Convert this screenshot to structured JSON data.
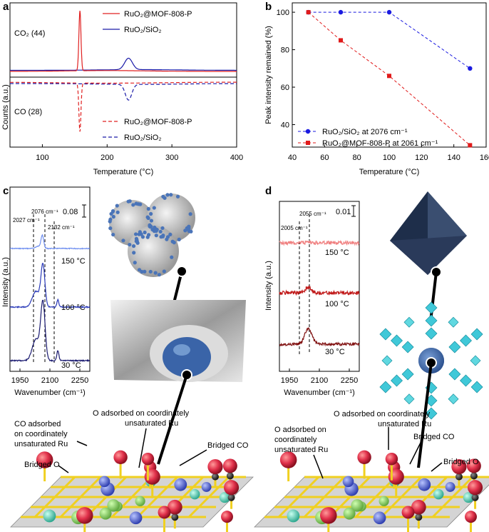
{
  "panels": {
    "a": "a",
    "b": "b",
    "c": "c",
    "d": "d"
  },
  "panel_a": {
    "legend_top": [
      "RuO₂@MOF-808-P",
      "RuO₂/SiO₂"
    ],
    "legend_bottom": [
      "RuO₂@MOF-808-P",
      "RuO₂/SiO₂"
    ],
    "label_co2": "CO₂ (44)",
    "label_co": "CO (28)",
    "ylabel": "Counts (a.u.)",
    "xlabel": "Temperature (°C)",
    "xticks": [
      "100",
      "200",
      "300",
      "400"
    ],
    "colors": {
      "mof": "#e02020",
      "sio2": "#1a1aa8"
    }
  },
  "chart_data": [
    {
      "type": "line",
      "title": "",
      "xlabel": "Temperature (°C)",
      "ylabel": "Counts (a.u.)",
      "xlim": [
        50,
        400
      ],
      "series": [
        {
          "name": "RuO₂@MOF-808-P",
          "signal": "CO₂ (44)",
          "peak_x": 158
        },
        {
          "name": "RuO₂/SiO₂",
          "signal": "CO₂ (44)",
          "peak_x": 233
        },
        {
          "name": "RuO₂@MOF-808-P",
          "signal": "CO (28)",
          "peak_x": 158
        },
        {
          "name": "RuO₂/SiO₂",
          "signal": "CO (28)",
          "peak_x": 233
        }
      ]
    },
    {
      "type": "line",
      "title": "",
      "xlabel": "Temperature (°C)",
      "ylabel": "Peak intensity remained (%)",
      "xlim": [
        40,
        160
      ],
      "ylim": [
        28,
        105
      ],
      "xticks": [
        "40",
        "60",
        "80",
        "100",
        "120",
        "140",
        "160"
      ],
      "yticks": [
        "40",
        "60",
        "80",
        "100"
      ],
      "legend_position": "bottom-left",
      "series": [
        {
          "name": "RuO₂/SiO₂ at 2076 cm⁻¹",
          "color": "#1a1ae0",
          "x": [
            50,
            70,
            100,
            150
          ],
          "y": [
            100,
            100,
            100,
            70
          ]
        },
        {
          "name": "RuO₂@MOF-808-P at 2061 cm⁻¹",
          "color": "#e01a1a",
          "x": [
            50,
            70,
            100,
            150
          ],
          "y": [
            100,
            85,
            66,
            29
          ]
        }
      ]
    },
    {
      "type": "line",
      "ylabel": "Intensity (a.u.)",
      "xlabel": "Wavenumber (cm⁻¹)",
      "xticks": [
        "1950",
        "2100",
        "2250"
      ],
      "scale_bar": "0.08",
      "peak_labels": [
        "2076 cm⁻¹",
        "2027 cm⁻¹",
        "2132 cm⁻¹"
      ],
      "series": [
        {
          "name": "150 °C"
        },
        {
          "name": "100 °C"
        },
        {
          "name": "30 °C"
        }
      ]
    },
    {
      "type": "line",
      "ylabel": "Intensity (a.u.)",
      "xlabel": "Wavenumber (cm⁻¹)",
      "xticks": [
        "1950",
        "2100",
        "2250"
      ],
      "scale_bar": "0.01",
      "peak_labels": [
        "2055 cm⁻¹",
        "2005 cm⁻¹"
      ],
      "series": [
        {
          "name": "150 °C"
        },
        {
          "name": "100 °C"
        },
        {
          "name": "30 °C"
        }
      ]
    }
  ],
  "annotations_left": {
    "co_adsorbed": [
      "CO adsorbed",
      "on coordinately",
      "unsaturated Ru"
    ],
    "o_adsorbed": [
      "O adsorbed on coordinately",
      "unsaturated Ru"
    ],
    "bridged_co": "Bridged CO",
    "bridged_o": "Bridged O"
  },
  "annotations_right": {
    "o_adsorbed_top": [
      "O adsorbed on coordinately",
      "unsaturated Ru"
    ],
    "o_adsorbed_left": [
      "O adsorbed on",
      "coordinately",
      "unsaturated Ru"
    ],
    "bridged_co": "Bridged CO",
    "bridged_o": "Bridged O"
  }
}
